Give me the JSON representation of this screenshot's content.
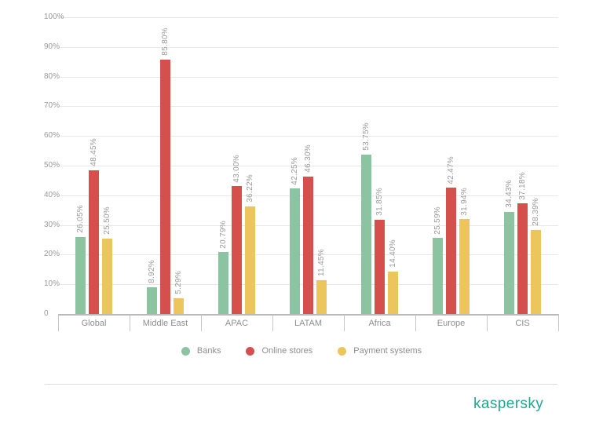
{
  "chart_data": {
    "type": "bar",
    "categories": [
      "Global",
      "Middle East",
      "APAC",
      "LATAM",
      "Africa",
      "Europe",
      "CIS"
    ],
    "series": [
      {
        "name": "Banks",
        "color": "#8cc4a2",
        "values": [
          26.05,
          8.92,
          20.79,
          42.25,
          53.75,
          25.59,
          34.43
        ]
      },
      {
        "name": "Online stores",
        "color": "#d5504c",
        "values": [
          48.45,
          85.8,
          43.0,
          46.3,
          31.85,
          42.47,
          37.18
        ]
      },
      {
        "name": "Payment systems",
        "color": "#ecc65c",
        "values": [
          25.5,
          5.29,
          36.22,
          11.45,
          14.4,
          31.94,
          28.39
        ]
      }
    ],
    "value_label_format": "{value}%",
    "value_label_decimals": 2,
    "y_axis": {
      "min": 0,
      "max": 100,
      "tick_step": 10,
      "tick_labels": [
        "100%",
        "90%",
        "80%",
        "70%",
        "60%",
        "50%",
        "40%",
        "30%",
        "20%",
        "10%",
        "0"
      ],
      "grid": true
    },
    "legend": {
      "position": "bottom",
      "items": [
        "Banks",
        "Online stores",
        "Payment systems"
      ]
    },
    "colors": {
      "grid": "#e8e8e8",
      "axis": "#b9b9b9",
      "labels": "#9a9a9a"
    }
  },
  "branding": {
    "logo_text": "kaspersky",
    "logo_color": "#23a794"
  }
}
